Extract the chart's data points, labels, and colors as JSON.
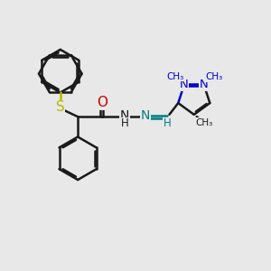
{
  "bg_color": "#e8e8e8",
  "bond_color": "#1a1a1a",
  "bond_width": 1.8,
  "sep": 0.06,
  "S_color": "#b8b800",
  "O_color": "#cc0000",
  "N_color": "#0000cc",
  "N_teal_color": "#008080",
  "figsize": [
    3.0,
    3.0
  ],
  "dpi": 100,
  "xlim": [
    0,
    10
  ],
  "ylim": [
    0,
    10
  ]
}
